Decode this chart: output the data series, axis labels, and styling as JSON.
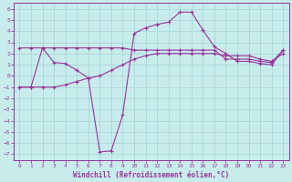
{
  "xlabel": "Windchill (Refroidissement éolien,°C)",
  "bg_color": "#c8ecec",
  "grid_color": "#a8d8d8",
  "line_color": "#993399",
  "xlim": [
    -0.5,
    23.5
  ],
  "ylim": [
    -7.5,
    6.5
  ],
  "yticks": [
    6,
    5,
    4,
    3,
    2,
    1,
    0,
    -1,
    -2,
    -3,
    -4,
    -5,
    -6,
    -7
  ],
  "xticks": [
    0,
    1,
    2,
    3,
    4,
    5,
    6,
    7,
    8,
    9,
    10,
    11,
    12,
    13,
    14,
    15,
    16,
    17,
    18,
    19,
    20,
    21,
    22,
    23
  ],
  "series1_x": [
    0,
    1,
    2,
    3,
    4,
    5,
    6,
    7,
    8,
    9,
    10,
    11,
    12,
    13,
    14,
    15,
    16,
    17,
    18,
    19,
    20,
    21,
    22,
    23
  ],
  "series1_y": [
    -1.0,
    -1.0,
    2.5,
    1.2,
    1.1,
    0.5,
    -0.2,
    -6.8,
    -6.7,
    -3.5,
    3.8,
    4.3,
    4.6,
    4.8,
    5.7,
    5.7,
    4.1,
    2.6,
    2.0,
    1.3,
    1.3,
    1.1,
    1.0,
    2.3
  ],
  "series2_x": [
    0,
    1,
    2,
    3,
    4,
    5,
    6,
    7,
    8,
    9,
    10,
    11,
    12,
    13,
    14,
    15,
    16,
    17,
    18,
    19,
    20,
    21,
    22,
    23
  ],
  "series2_y": [
    2.5,
    2.5,
    2.5,
    2.5,
    2.5,
    2.5,
    2.5,
    2.5,
    2.5,
    2.5,
    2.3,
    2.3,
    2.3,
    2.3,
    2.3,
    2.3,
    2.3,
    2.3,
    1.5,
    1.5,
    1.5,
    1.3,
    1.2,
    2.3
  ],
  "series3_x": [
    0,
    1,
    2,
    3,
    4,
    5,
    6,
    7,
    8,
    9,
    10,
    11,
    12,
    13,
    14,
    15,
    16,
    17,
    18,
    19,
    20,
    21,
    22,
    23
  ],
  "series3_y": [
    -1.0,
    -1.0,
    -1.0,
    -1.0,
    -0.8,
    -0.5,
    -0.2,
    0.0,
    0.5,
    1.0,
    1.5,
    1.8,
    2.0,
    2.0,
    2.0,
    2.0,
    2.0,
    2.0,
    1.8,
    1.8,
    1.8,
    1.5,
    1.3,
    2.0
  ]
}
